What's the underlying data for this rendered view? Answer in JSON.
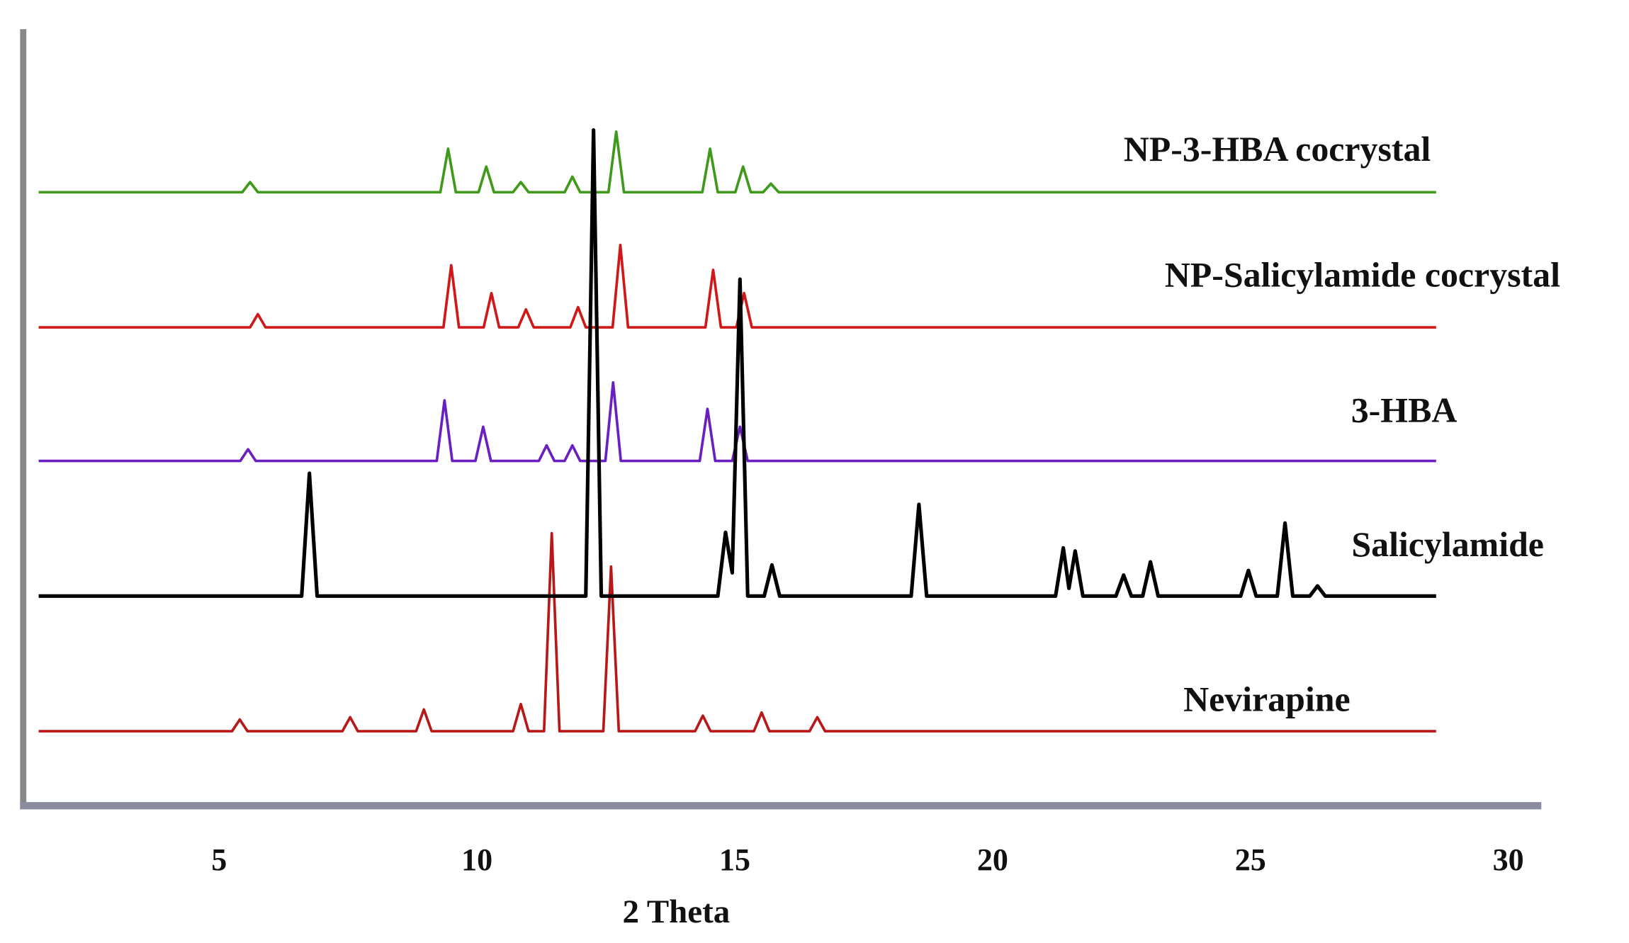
{
  "chart_data": {
    "type": "line",
    "x_label": "2 Theta",
    "xlim": [
      1.2,
      30.6
    ],
    "xticks": [
      5,
      10,
      15,
      20,
      25,
      30
    ],
    "ylim": [
      0,
      100
    ],
    "series": [
      {
        "name": "Nevirapine",
        "color": "#b81818",
        "x": [
          1.5,
          5.25,
          5.4,
          5.55,
          7.39,
          7.54,
          7.69,
          8.82,
          8.97,
          9.12,
          10.7,
          10.85,
          11.0,
          11.3,
          11.45,
          11.6,
          12.45,
          12.6,
          12.75,
          14.23,
          14.38,
          14.53,
          15.37,
          15.52,
          15.67,
          16.45,
          16.6,
          16.75,
          28.6
        ],
        "values": [
          9.6,
          9.6,
          11.1,
          9.6,
          9.6,
          11.4,
          9.6,
          9.6,
          12.4,
          9.6,
          9.6,
          13.1,
          9.6,
          9.6,
          35.1,
          9.6,
          9.6,
          30.8,
          9.6,
          9.6,
          11.6,
          9.6,
          9.6,
          12.0,
          9.6,
          9.6,
          11.4,
          9.6,
          9.6
        ]
      },
      {
        "name": "3-HBA",
        "color": "#6a1fc0",
        "x": [
          1.5,
          5.41,
          5.56,
          5.71,
          9.22,
          9.37,
          9.52,
          9.97,
          10.12,
          10.27,
          11.2,
          11.35,
          11.5,
          11.7,
          11.85,
          12.0,
          12.49,
          12.64,
          12.79,
          14.32,
          14.47,
          14.62,
          14.95,
          15.1,
          15.25,
          28.6
        ],
        "values": [
          44.4,
          44.4,
          45.9,
          44.4,
          44.4,
          52.2,
          44.4,
          44.4,
          48.8,
          44.4,
          44.4,
          46.4,
          44.4,
          44.4,
          46.4,
          44.4,
          44.4,
          54.5,
          44.4,
          44.4,
          51.1,
          44.4,
          44.4,
          48.8,
          44.4,
          44.4
        ]
      },
      {
        "name": "NP-Salicylamide cocrystal",
        "color": "#d01818",
        "x": [
          1.5,
          5.6,
          5.75,
          5.9,
          9.35,
          9.5,
          9.65,
          10.13,
          10.28,
          10.43,
          10.8,
          10.95,
          11.1,
          11.81,
          11.96,
          12.11,
          12.63,
          12.78,
          12.93,
          14.43,
          14.58,
          14.73,
          15.03,
          15.18,
          15.33,
          28.6
        ],
        "values": [
          61.6,
          61.6,
          63.3,
          61.6,
          61.6,
          69.6,
          61.6,
          61.6,
          66,
          61.6,
          61.6,
          63.9,
          61.6,
          61.6,
          64.2,
          61.6,
          61.6,
          72.2,
          61.6,
          61.6,
          69,
          61.6,
          61.6,
          66,
          61.6,
          61.6
        ]
      },
      {
        "name": "NP-3-HBA cocrystal",
        "color": "#3f9a1c",
        "x": [
          1.5,
          5.45,
          5.6,
          5.75,
          9.29,
          9.44,
          9.59,
          10.03,
          10.18,
          10.33,
          10.7,
          10.85,
          11.0,
          11.7,
          11.85,
          12.0,
          12.55,
          12.7,
          12.85,
          14.37,
          14.52,
          14.67,
          15.01,
          15.16,
          15.31,
          15.55,
          15.7,
          15.85,
          28.6
        ],
        "values": [
          79,
          79,
          80.3,
          79,
          79,
          84.6,
          79,
          79,
          82.3,
          79,
          79,
          80.3,
          79,
          79,
          81,
          79,
          79,
          86.8,
          79,
          79,
          84.6,
          79,
          79,
          82.3,
          79,
          79,
          80.1,
          79,
          79
        ]
      },
      {
        "name": "Salicylamide",
        "color": "#000000",
        "x": [
          1.5,
          6.6,
          6.75,
          6.9,
          12.11,
          12.26,
          12.41,
          14.67,
          14.82,
          14.95,
          15.1,
          15.25,
          15.57,
          15.72,
          15.87,
          18.42,
          18.57,
          18.72,
          21.22,
          21.37,
          21.48,
          21.6,
          21.75,
          22.39,
          22.54,
          22.69,
          22.91,
          23.06,
          23.21,
          24.81,
          24.96,
          25.11,
          25.52,
          25.67,
          25.82,
          26.15,
          26.3,
          26.45,
          28.6
        ],
        "values": [
          27,
          27,
          42.8,
          27,
          27,
          87,
          27,
          27,
          35.2,
          30,
          67.8,
          27,
          27,
          31,
          27,
          27,
          38.8,
          27,
          27,
          33.2,
          28,
          32.8,
          27,
          27,
          29.7,
          27,
          27,
          31.4,
          27,
          27,
          30.3,
          27,
          27,
          36.4,
          27,
          27,
          28.3,
          27,
          27
        ]
      }
    ]
  }
}
